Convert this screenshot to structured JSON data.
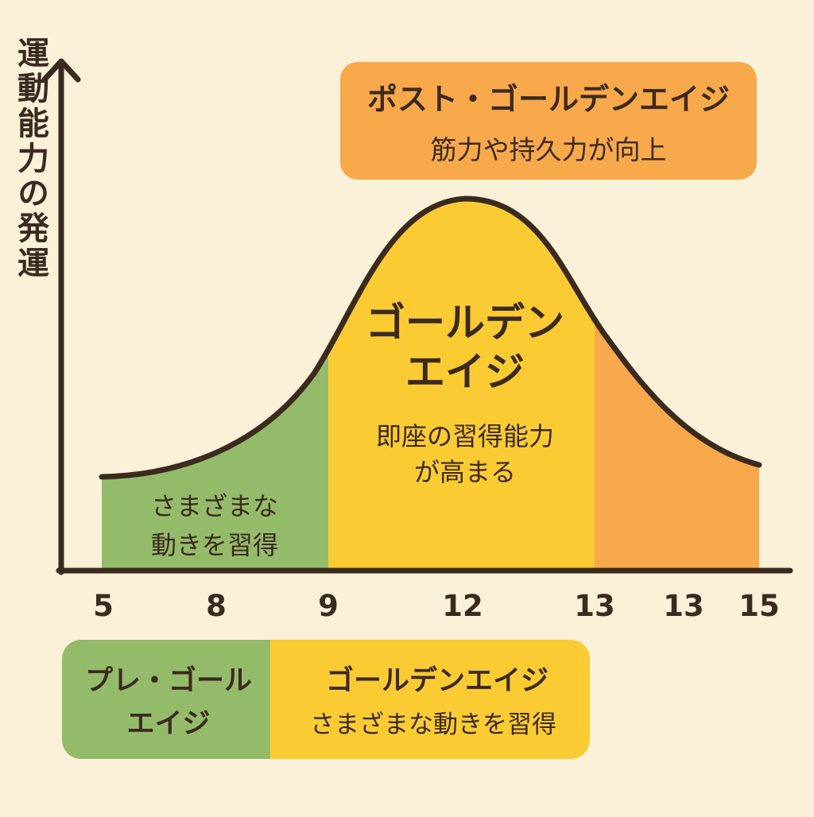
{
  "colors": {
    "background": "#fbf1d9",
    "pre_golden": "#94bb6a",
    "golden": "#fbcb34",
    "post_golden": "#f8a94b",
    "curve": "#3b2a1e",
    "axis": "#3b2a1e",
    "text": "#3b2a1e"
  },
  "y_axis_label": "運動能力の発運",
  "x_ticks": [
    "5",
    "8",
    "9",
    "12",
    "13",
    "13",
    "15"
  ],
  "post_golden_box": {
    "title": "ポスト・ゴールデンエイジ",
    "subtitle": "筋力や持久力が向上"
  },
  "pre_golden_area": {
    "line1": "さまざまな",
    "line2": "動きを習得"
  },
  "golden_area": {
    "title_line1": "ゴールデン",
    "title_line2": "エイジ",
    "desc_line1": "即座の習得能力",
    "desc_line2": "が高まる"
  },
  "legend": {
    "pre_line1": "プレ・ゴール",
    "pre_line2": "エイジ",
    "golden_title": "ゴールデンエイジ",
    "golden_desc": "さまざまな動きを習得"
  }
}
